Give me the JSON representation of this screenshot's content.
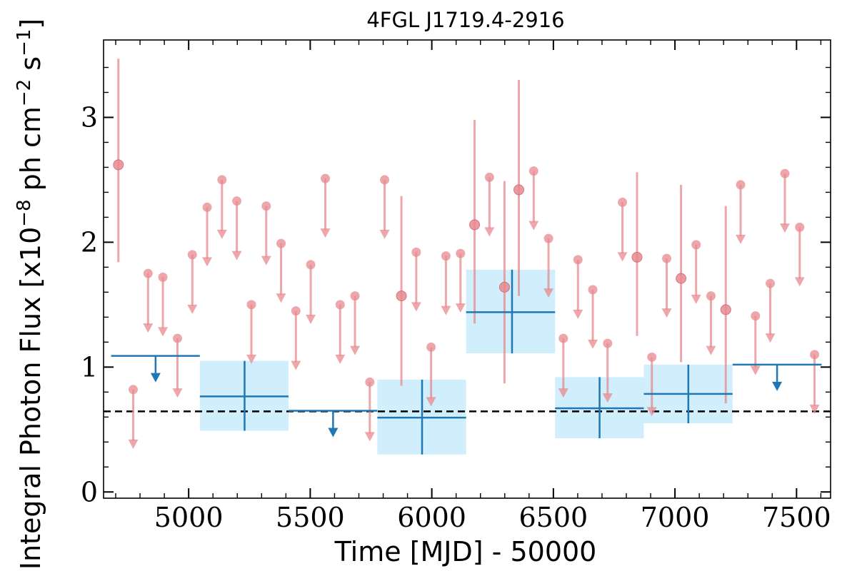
{
  "chart_data": {
    "type": "scatter",
    "title": "4FGL J1719.4-2916",
    "xlabel": "Time [MJD] - 50000",
    "ylabel": "Integral Photon Flux [x10",
    "ylabel_exp1": "−8",
    "ylabel_mid": " ph cm",
    "ylabel_exp2": "−2",
    "ylabel_mid2": " s",
    "ylabel_exp3": "−1",
    "ylabel_end": "]",
    "xlim": [
      4650,
      7640
    ],
    "ylim": [
      -0.05,
      3.62
    ],
    "xticks": [
      5000,
      5500,
      6000,
      6500,
      7000,
      7500
    ],
    "yticks": [
      0,
      1,
      2,
      3
    ],
    "baseline": 0.645,
    "colors": {
      "monthly": "#e78a8f",
      "yearly": "#1f77b4",
      "yearly_band": "#d0eefb",
      "baseline": "#000000"
    },
    "monthly_detections": [
      {
        "x": 4711,
        "y": 2.62,
        "ylo": 1.84,
        "yhi": 3.47
      },
      {
        "x": 5875,
        "y": 1.57,
        "ylo": 0.85,
        "yhi": 2.37
      },
      {
        "x": 6176,
        "y": 2.14,
        "ylo": 1.35,
        "yhi": 2.98
      },
      {
        "x": 6299,
        "y": 1.64,
        "ylo": 0.87,
        "yhi": 2.49
      },
      {
        "x": 6358,
        "y": 2.42,
        "ylo": 1.57,
        "yhi": 3.3
      },
      {
        "x": 6844,
        "y": 1.88,
        "ylo": 1.25,
        "yhi": 2.56
      },
      {
        "x": 7025,
        "y": 1.71,
        "ylo": 1.04,
        "yhi": 2.46
      },
      {
        "x": 7209,
        "y": 1.46,
        "ylo": 0.71,
        "yhi": 2.29
      }
    ],
    "monthly_upper_limits": [
      {
        "x": 4772,
        "y": 0.82
      },
      {
        "x": 4833,
        "y": 1.75
      },
      {
        "x": 4894,
        "y": 1.72
      },
      {
        "x": 4954,
        "y": 1.23
      },
      {
        "x": 5015,
        "y": 1.9
      },
      {
        "x": 5076,
        "y": 2.28
      },
      {
        "x": 5137,
        "y": 2.5
      },
      {
        "x": 5198,
        "y": 2.33
      },
      {
        "x": 5258,
        "y": 1.5
      },
      {
        "x": 5319,
        "y": 2.29
      },
      {
        "x": 5380,
        "y": 1.99
      },
      {
        "x": 5441,
        "y": 1.45
      },
      {
        "x": 5502,
        "y": 1.82
      },
      {
        "x": 5562,
        "y": 2.51
      },
      {
        "x": 5623,
        "y": 1.5
      },
      {
        "x": 5684,
        "y": 1.57
      },
      {
        "x": 5745,
        "y": 0.88
      },
      {
        "x": 5806,
        "y": 2.5
      },
      {
        "x": 5936,
        "y": 1.92
      },
      {
        "x": 5997,
        "y": 1.16
      },
      {
        "x": 6058,
        "y": 1.89
      },
      {
        "x": 6118,
        "y": 1.91
      },
      {
        "x": 6237,
        "y": 2.52
      },
      {
        "x": 6419,
        "y": 2.57
      },
      {
        "x": 6480,
        "y": 2.03
      },
      {
        "x": 6541,
        "y": 1.23
      },
      {
        "x": 6601,
        "y": 1.86
      },
      {
        "x": 6662,
        "y": 1.62
      },
      {
        "x": 6723,
        "y": 1.19
      },
      {
        "x": 6784,
        "y": 2.32
      },
      {
        "x": 6905,
        "y": 1.08
      },
      {
        "x": 6966,
        "y": 1.87
      },
      {
        "x": 7087,
        "y": 1.98
      },
      {
        "x": 7148,
        "y": 1.57
      },
      {
        "x": 7270,
        "y": 2.46
      },
      {
        "x": 7331,
        "y": 1.41
      },
      {
        "x": 7392,
        "y": 1.67
      },
      {
        "x": 7452,
        "y": 2.55
      },
      {
        "x": 7513,
        "y": 2.12
      },
      {
        "x": 7574,
        "y": 1.1
      }
    ],
    "yearly_detections": [
      {
        "x": 5230,
        "xlo": 5046,
        "xhi": 5411,
        "y": 0.765,
        "ylo": 0.49,
        "yhi": 1.05
      },
      {
        "x": 5960,
        "xlo": 5776,
        "xhi": 6141,
        "y": 0.595,
        "ylo": 0.3,
        "yhi": 0.9
      },
      {
        "x": 6330,
        "xlo": 6141,
        "xhi": 6507,
        "y": 1.44,
        "ylo": 1.11,
        "yhi": 1.78
      },
      {
        "x": 6690,
        "xlo": 6507,
        "xhi": 6872,
        "y": 0.67,
        "ylo": 0.43,
        "yhi": 0.92
      },
      {
        "x": 7055,
        "xlo": 6872,
        "xhi": 7237,
        "y": 0.785,
        "ylo": 0.55,
        "yhi": 1.02
      }
    ],
    "yearly_upper_limits": [
      {
        "x": 4864,
        "xlo": 4681,
        "xhi": 5046,
        "y": 1.09
      },
      {
        "x": 5594,
        "xlo": 5411,
        "xhi": 5776,
        "y": 0.65
      },
      {
        "x": 7420,
        "xlo": 7237,
        "xhi": 7603,
        "y": 1.02
      }
    ]
  }
}
